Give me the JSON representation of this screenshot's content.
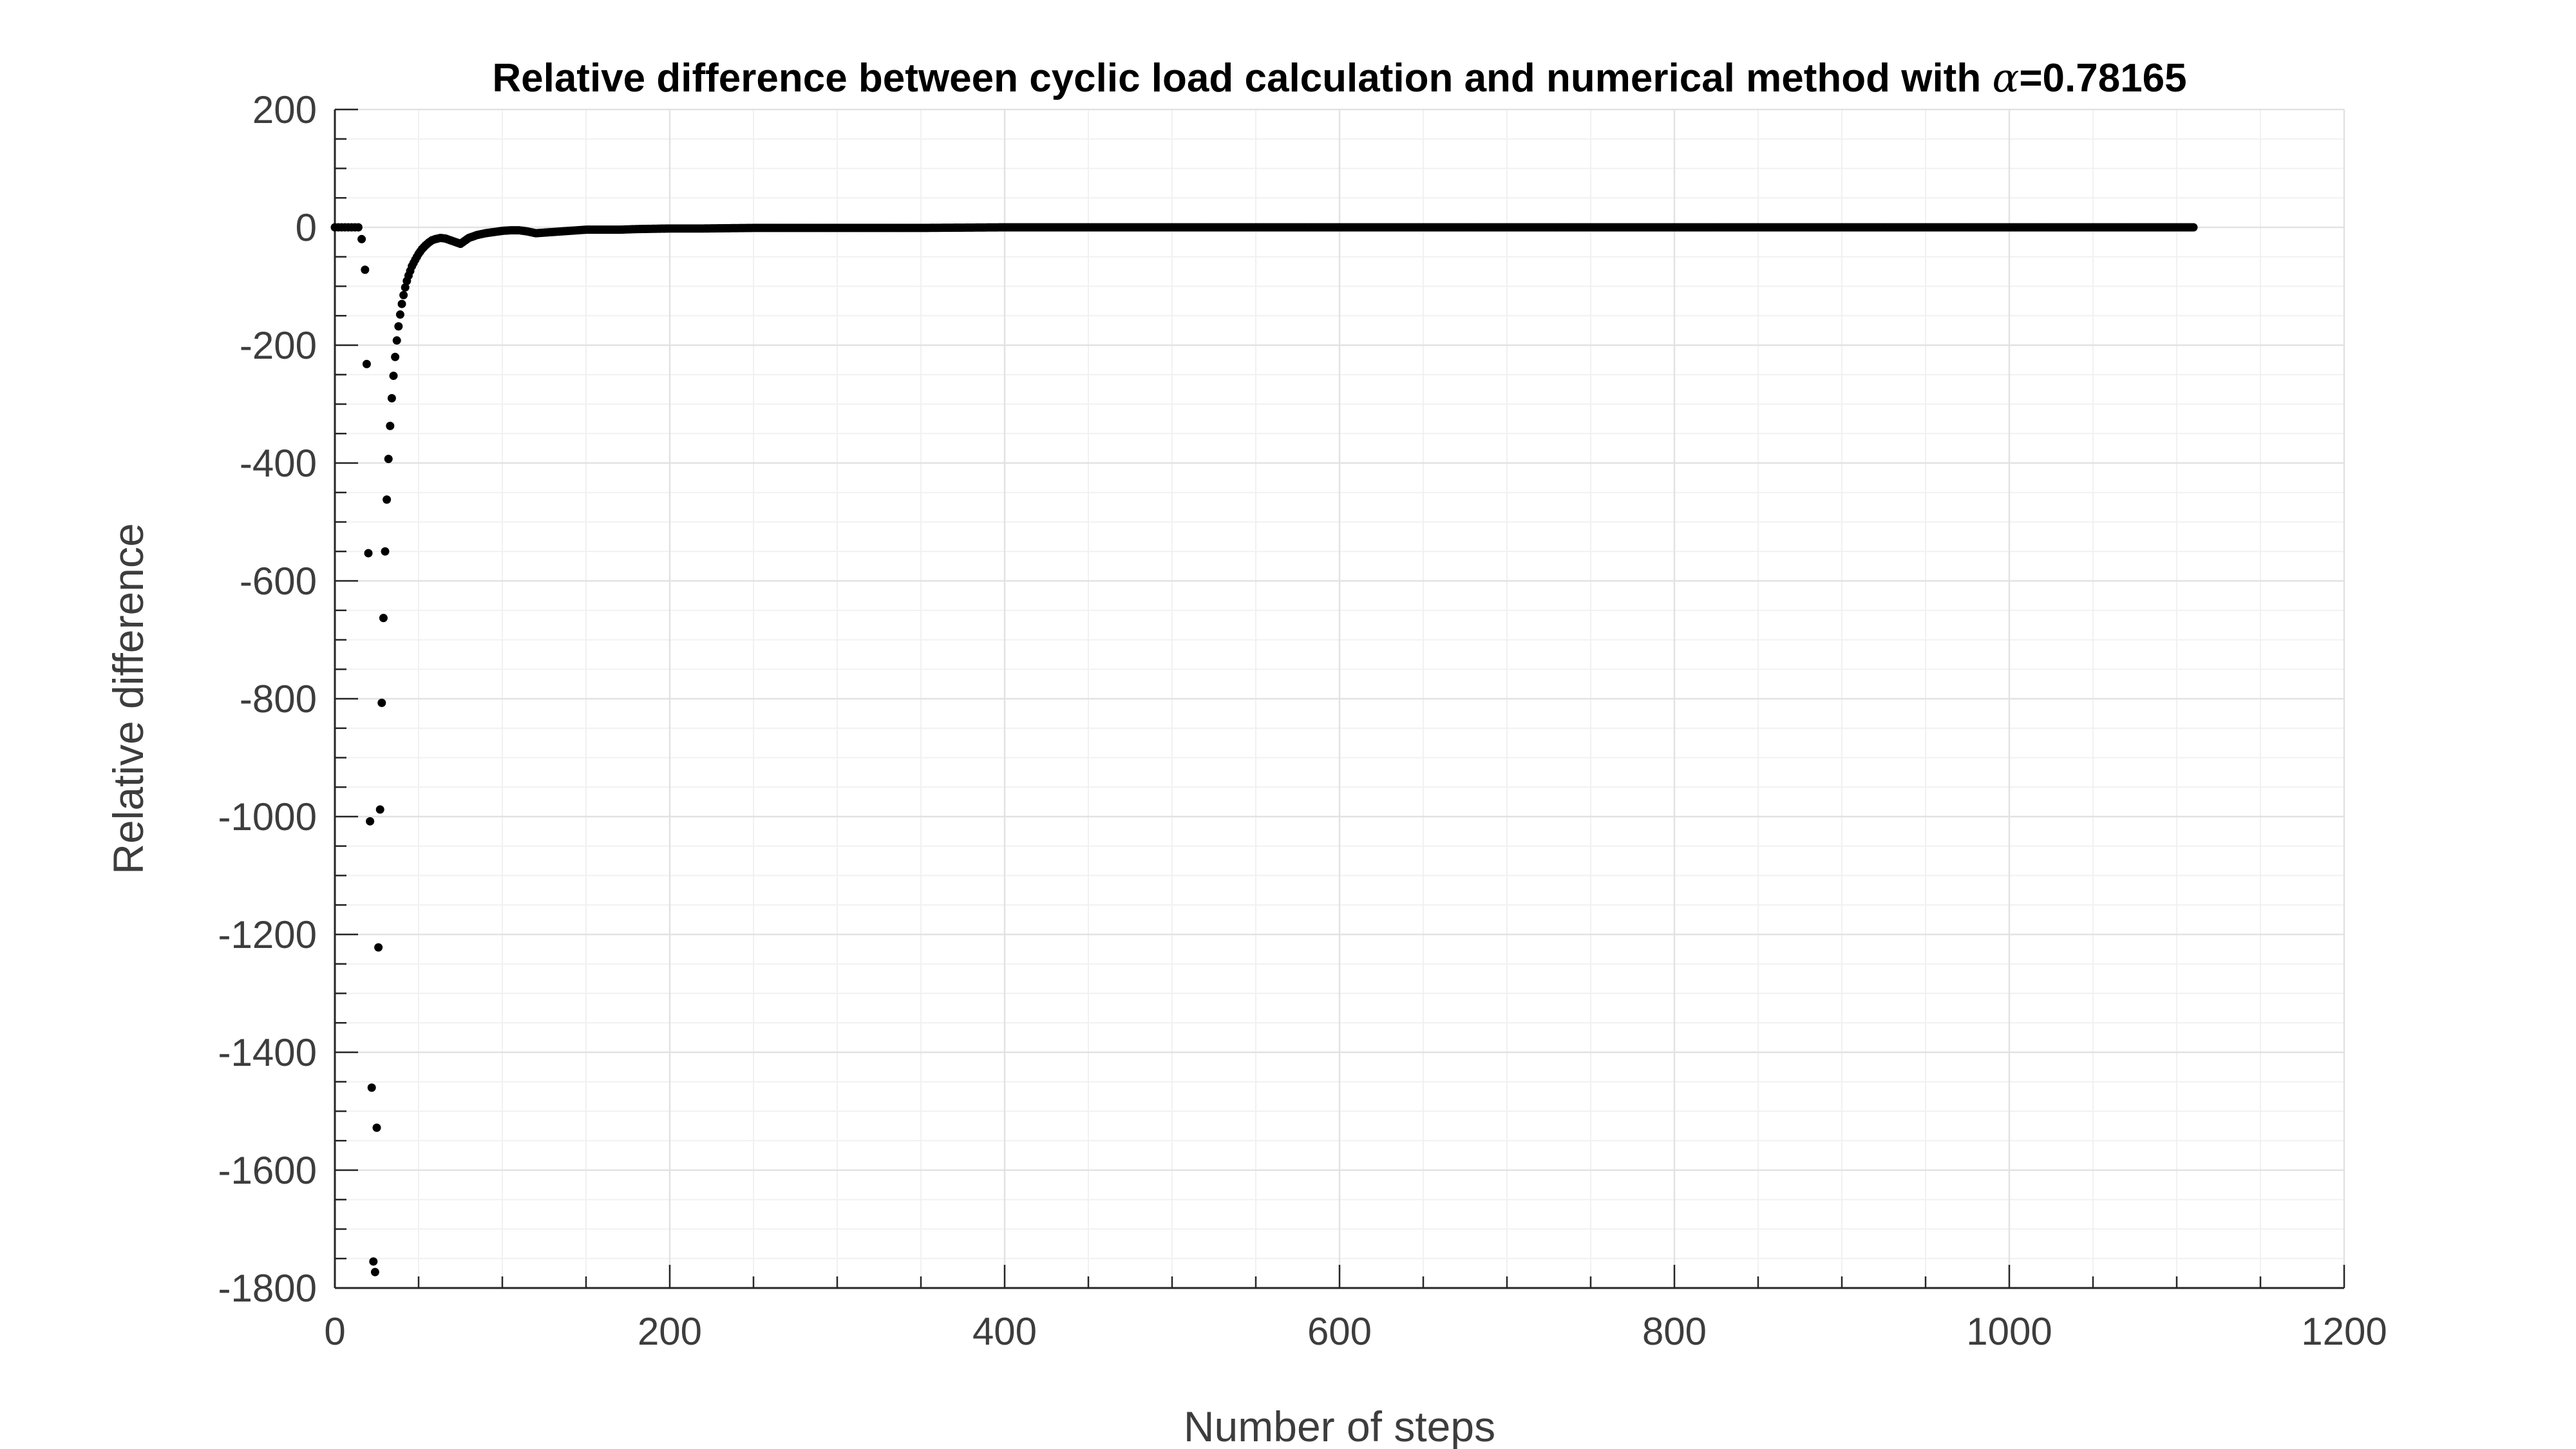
{
  "chart_data": {
    "type": "scatter",
    "title": {
      "prefix": "Relative difference between cyclic load calculation and numerical method with ",
      "symbol": "α",
      "suffix": "=0.78165"
    },
    "xlabel": "Number of steps",
    "ylabel": "Relative difference",
    "xlim": [
      0,
      1200
    ],
    "ylim": [
      -1800,
      200
    ],
    "xticks": [
      0,
      200,
      400,
      600,
      800,
      1000,
      1200
    ],
    "xtick_labels": [
      "0",
      "200",
      "400",
      "600",
      "800",
      "1000",
      "1200"
    ],
    "yticks": [
      200,
      0,
      -200,
      -400,
      -600,
      -800,
      -1000,
      -1200,
      -1400,
      -1600,
      -1800
    ],
    "ytick_labels": [
      "200",
      "0",
      "-200",
      "-400",
      "-600",
      "-800",
      "-1000",
      "-1200",
      "-1400",
      "-1600",
      "-1800"
    ],
    "grid": true,
    "marker_color": "#000000",
    "series": [
      {
        "x": [
          0,
          2,
          4,
          6,
          8,
          10,
          12,
          14,
          16,
          18,
          19,
          20,
          21,
          22,
          23,
          24,
          25,
          26,
          27,
          28,
          29,
          30,
          31,
          32,
          33,
          34,
          35,
          36,
          37,
          38,
          39,
          40,
          41,
          42,
          43,
          44,
          45,
          46,
          48,
          50,
          52,
          54,
          56,
          58,
          60,
          63,
          66,
          70,
          75,
          80,
          85,
          90,
          95,
          100,
          105,
          110,
          115,
          120,
          125,
          130,
          140,
          150,
          160,
          170,
          180,
          200,
          220,
          250,
          300,
          350,
          400,
          450,
          500,
          550,
          600,
          650,
          700,
          750,
          800,
          850,
          900,
          950,
          1000,
          1050,
          1110
        ],
        "y": [
          0,
          0,
          0,
          0,
          0,
          0,
          0,
          0,
          -20,
          -72,
          -232,
          -553,
          -1008,
          -1460,
          -1755,
          -1773,
          -1528,
          -1222,
          -988,
          -807,
          -663,
          -550,
          -462,
          -393,
          -337,
          -290,
          -252,
          -220,
          -192,
          -168,
          -148,
          -130,
          -115,
          -102,
          -91,
          -82,
          -74,
          -66,
          -55,
          -45,
          -37,
          -31,
          -26,
          -22,
          -20,
          -18,
          -19,
          -23,
          -28,
          -18,
          -13,
          -10,
          -8,
          -6,
          -5,
          -5,
          -7,
          -10,
          -9,
          -8,
          -6,
          -4,
          -4,
          -4,
          -3,
          -2,
          -2,
          -1,
          -1,
          -1,
          0,
          0,
          0,
          0,
          0,
          0,
          0,
          0,
          0,
          0,
          0,
          0,
          0,
          0,
          0
        ]
      }
    ]
  }
}
